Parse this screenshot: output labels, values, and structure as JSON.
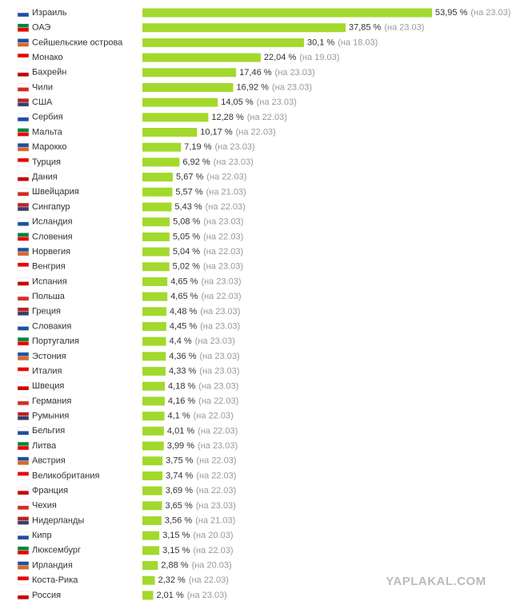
{
  "chart_data": {
    "type": "bar",
    "orientation": "horizontal",
    "color": "#a3d92c",
    "categories": [
      "Израиль",
      "ОАЭ",
      "Сейшельские острова",
      "Монако",
      "Бахрейн",
      "Чили",
      "США",
      "Сербия",
      "Мальта",
      "Марокко",
      "Турция",
      "Дания",
      "Швейцария",
      "Сингапур",
      "Исландия",
      "Словения",
      "Норвегия",
      "Венгрия",
      "Испания",
      "Польша",
      "Греция",
      "Словакия",
      "Португалия",
      "Эстония",
      "Италия",
      "Швеция",
      "Германия",
      "Румыния",
      "Бельгия",
      "Литва",
      "Австрия",
      "Великобритания",
      "Франция",
      "Чехия",
      "Нидерланды",
      "Кипр",
      "Люксембург",
      "Ирландия",
      "Коста-Рика",
      "Россия"
    ],
    "values": [
      53.95,
      37.85,
      30.1,
      22.04,
      17.46,
      16.92,
      14.05,
      12.28,
      10.17,
      7.19,
      6.92,
      5.67,
      5.57,
      5.43,
      5.08,
      5.05,
      5.04,
      5.02,
      4.65,
      4.65,
      4.48,
      4.45,
      4.4,
      4.36,
      4.33,
      4.18,
      4.16,
      4.1,
      4.01,
      3.99,
      3.75,
      3.74,
      3.69,
      3.65,
      3.56,
      3.15,
      3.15,
      2.88,
      2.32,
      2.01
    ],
    "value_labels": [
      "53,95 %",
      "37,85 %",
      "30,1 %",
      "22,04 %",
      "17,46 %",
      "16,92 %",
      "14,05 %",
      "12,28 %",
      "10,17 %",
      "7,19 %",
      "6,92 %",
      "5,67 %",
      "5,57 %",
      "5,43 %",
      "5,08 %",
      "5,05 %",
      "5,04 %",
      "5,02 %",
      "4,65 %",
      "4,65 %",
      "4,48 %",
      "4,45 %",
      "4,4 %",
      "4,36 %",
      "4,33 %",
      "4,18 %",
      "4,16 %",
      "4,1 %",
      "4,01 %",
      "3,99 %",
      "3,75 %",
      "3,74 %",
      "3,69 %",
      "3,65 %",
      "3,56 %",
      "3,15 %",
      "3,15 %",
      "2,88 %",
      "2,32 %",
      "2,01 %"
    ],
    "notes": [
      "(на 23.03)",
      "(на 23.03)",
      "(на 18.03)",
      "(на 19.03)",
      "(на 23.03)",
      "(на 23.03)",
      "(на 23.03)",
      "(на 22.03)",
      "(на 22.03)",
      "(на 23.03)",
      "(на 23.03)",
      "(на 22.03)",
      "(на 21.03)",
      "(на 22.03)",
      "(на 23.03)",
      "(на 22.03)",
      "(на 22.03)",
      "(на 23.03)",
      "(на 23.03)",
      "(на 22.03)",
      "(на 23.03)",
      "(на 23.03)",
      "(на 23.03)",
      "(на 23.03)",
      "(на 23.03)",
      "(на 23.03)",
      "(на 22.03)",
      "(на 22.03)",
      "(на 22.03)",
      "(на 23.03)",
      "(на 22.03)",
      "(на 22.03)",
      "(на 22.03)",
      "(на 23.03)",
      "(на 21.03)",
      "(на 20.03)",
      "(на 22.03)",
      "(на 20.03)",
      "(на 22.03)",
      "(на 23.03)"
    ],
    "watermark": "YAPLAKAL.COM"
  }
}
